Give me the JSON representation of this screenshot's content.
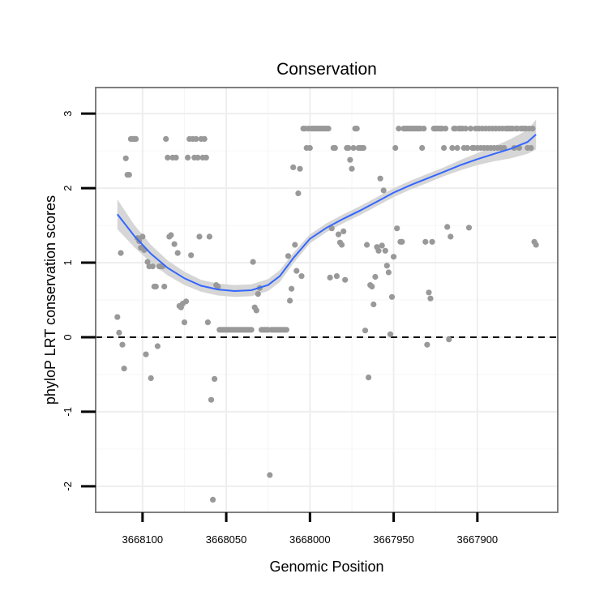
{
  "chart_data": {
    "type": "scatter",
    "title": "Conservation",
    "xlabel": "Genomic Position",
    "ylabel": "phyloP LRT conservation scores",
    "x_reversed": true,
    "xlim": [
      3668128,
      3667852
    ],
    "ylim": [
      -2.35,
      3.35
    ],
    "x_ticks": [
      3668100,
      3668050,
      3668000,
      3667950,
      3667900
    ],
    "x_tick_labels": [
      "3668100",
      "3668050",
      "3668000",
      "3667950",
      "3667900"
    ],
    "y_ticks": [
      -2,
      -1,
      0,
      1,
      2,
      3
    ],
    "y_tick_labels": [
      "-2",
      "-1",
      "0",
      "1",
      "2",
      "3"
    ],
    "grid": true,
    "reference_line": {
      "y": 0,
      "style": "dashed"
    },
    "colors": {
      "points": "#999999",
      "smooth_line": "#3366ff",
      "confidence_band": "#d6d6d6",
      "grid": "#eeeeee",
      "panel_border": "#7f7f7f",
      "reference_line": "#000000"
    },
    "series": [
      {
        "type": "scatter",
        "points": [
          [
            3668115,
            0.27
          ],
          [
            3668114,
            0.06
          ],
          [
            3668113,
            1.13
          ],
          [
            3668112,
            -0.1
          ],
          [
            3668111,
            -0.42
          ],
          [
            3668110,
            2.4
          ],
          [
            3668109,
            2.18
          ],
          [
            3668108,
            2.18
          ],
          [
            3668107,
            2.66
          ],
          [
            3668106,
            2.66
          ],
          [
            3668105,
            2.66
          ],
          [
            3668104,
            2.66
          ],
          [
            3668103,
            1.33
          ],
          [
            3668102,
            1.29
          ],
          [
            3668101,
            1.2
          ],
          [
            3668100,
            1.35
          ],
          [
            3668099,
            1.17
          ],
          [
            3668098,
            -0.23
          ],
          [
            3668097,
            1.01
          ],
          [
            3668096,
            0.95
          ],
          [
            3668095,
            -0.55
          ],
          [
            3668094,
            0.95
          ],
          [
            3668093,
            0.68
          ],
          [
            3668092,
            0.68
          ],
          [
            3668091,
            -0.12
          ],
          [
            3668090,
            0.95
          ],
          [
            3668089,
            0.95
          ],
          [
            3668088,
            0.95
          ],
          [
            3668087,
            0.68
          ],
          [
            3668086,
            2.66
          ],
          [
            3668085,
            2.41
          ],
          [
            3668084,
            1.35
          ],
          [
            3668083,
            1.37
          ],
          [
            3668082,
            2.41
          ],
          [
            3668081,
            1.25
          ],
          [
            3668080,
            2.41
          ],
          [
            3668079,
            1.13
          ],
          [
            3668078,
            0.42
          ],
          [
            3668077,
            0.4
          ],
          [
            3668076,
            0.45
          ],
          [
            3668075,
            0.2
          ],
          [
            3668074,
            0.48
          ],
          [
            3668073,
            2.41
          ],
          [
            3668072,
            2.66
          ],
          [
            3668071,
            1.1
          ],
          [
            3668070,
            2.66
          ],
          [
            3668069,
            2.41
          ],
          [
            3668068,
            2.66
          ],
          [
            3668067,
            2.41
          ],
          [
            3668066,
            1.35
          ],
          [
            3668065,
            2.66
          ],
          [
            3668064,
            2.41
          ],
          [
            3668063,
            2.66
          ],
          [
            3668062,
            2.41
          ],
          [
            3668061,
            0.2
          ],
          [
            3668060,
            1.35
          ],
          [
            3668059,
            -0.84
          ],
          [
            3668058,
            -2.18
          ],
          [
            3668057,
            -0.56
          ],
          [
            3668056,
            0.7
          ],
          [
            3668055,
            0.68
          ],
          [
            3668054,
            0.1
          ],
          [
            3668053,
            0.1
          ],
          [
            3668052,
            0.1
          ],
          [
            3668051,
            0.1
          ],
          [
            3668050,
            0.1
          ],
          [
            3668049,
            0.1
          ],
          [
            3668048,
            0.1
          ],
          [
            3668047,
            0.1
          ],
          [
            3668046,
            0.1
          ],
          [
            3668045,
            0.1
          ],
          [
            3668044,
            0.1
          ],
          [
            3668043,
            0.1
          ],
          [
            3668042,
            0.1
          ],
          [
            3668041,
            0.1
          ],
          [
            3668040,
            0.1
          ],
          [
            3668039,
            0.1
          ],
          [
            3668038,
            0.1
          ],
          [
            3668037,
            0.1
          ],
          [
            3668036,
            0.1
          ],
          [
            3668035,
            0.1
          ],
          [
            3668034,
            1.01
          ],
          [
            3668033,
            0.4
          ],
          [
            3668032,
            0.36
          ],
          [
            3668031,
            0.58
          ],
          [
            3668030,
            0.66
          ],
          [
            3668029,
            0.1
          ],
          [
            3668028,
            0.1
          ],
          [
            3668027,
            0.1
          ],
          [
            3668026,
            0.1
          ],
          [
            3668025,
            0.1
          ],
          [
            3668024,
            -1.85
          ],
          [
            3668023,
            0.1
          ],
          [
            3668022,
            0.1
          ],
          [
            3668021,
            0.1
          ],
          [
            3668020,
            0.1
          ],
          [
            3668019,
            0.1
          ],
          [
            3668018,
            0.1
          ],
          [
            3668017,
            0.1
          ],
          [
            3668016,
            0.1
          ],
          [
            3668015,
            0.1
          ],
          [
            3668014,
            0.1
          ],
          [
            3668013,
            1.09
          ],
          [
            3668012,
            0.49
          ],
          [
            3668011,
            0.65
          ],
          [
            3668010,
            2.28
          ],
          [
            3668009,
            1.24
          ],
          [
            3668008,
            0.89
          ],
          [
            3668007,
            1.93
          ],
          [
            3668006,
            2.26
          ],
          [
            3668005,
            0.82
          ],
          [
            3668004,
            2.8
          ],
          [
            3668003,
            2.8
          ],
          [
            3668002,
            2.54
          ],
          [
            3668001,
            2.8
          ],
          [
            3668000,
            2.54
          ],
          [
            3667999,
            2.8
          ],
          [
            3667998,
            2.8
          ],
          [
            3667997,
            2.8
          ],
          [
            3667996,
            2.8
          ],
          [
            3667995,
            2.8
          ],
          [
            3667994,
            2.8
          ],
          [
            3667993,
            2.8
          ],
          [
            3667992,
            2.8
          ],
          [
            3667991,
            2.8
          ],
          [
            3667990,
            2.8
          ],
          [
            3667989,
            2.8
          ],
          [
            3667988,
            0.8
          ],
          [
            3667987,
            1.46
          ],
          [
            3667986,
            2.54
          ],
          [
            3667985,
            2.54
          ],
          [
            3667984,
            0.82
          ],
          [
            3667983,
            1.38
          ],
          [
            3667982,
            1.27
          ],
          [
            3667981,
            1.24
          ],
          [
            3667980,
            1.42
          ],
          [
            3667979,
            0.77
          ],
          [
            3667978,
            2.54
          ],
          [
            3667977,
            2.54
          ],
          [
            3667976,
            2.38
          ],
          [
            3667975,
            2.26
          ],
          [
            3667974,
            2.54
          ],
          [
            3667973,
            2.8
          ],
          [
            3667972,
            2.8
          ],
          [
            3667971,
            2.54
          ],
          [
            3667970,
            2.54
          ],
          [
            3667969,
            2.54
          ],
          [
            3667968,
            2.54
          ],
          [
            3667967,
            0.09
          ],
          [
            3667966,
            1.24
          ],
          [
            3667965,
            -0.54
          ],
          [
            3667964,
            0.7
          ],
          [
            3667963,
            0.68
          ],
          [
            3667962,
            0.44
          ],
          [
            3667961,
            0.81
          ],
          [
            3667960,
            1.21
          ],
          [
            3667959,
            1.16
          ],
          [
            3667958,
            2.13
          ],
          [
            3667957,
            1.23
          ],
          [
            3667956,
            1.97
          ],
          [
            3667955,
            1.16
          ],
          [
            3667954,
            0.96
          ],
          [
            3667953,
            0.87
          ],
          [
            3667952,
            0.04
          ],
          [
            3667951,
            0.54
          ],
          [
            3667950,
            1.08
          ],
          [
            3667949,
            2.54
          ],
          [
            3667948,
            1.46
          ],
          [
            3667947,
            2.8
          ],
          [
            3667946,
            1.28
          ],
          [
            3667945,
            1.28
          ],
          [
            3667944,
            2.8
          ],
          [
            3667943,
            2.8
          ],
          [
            3667942,
            2.8
          ],
          [
            3667941,
            2.8
          ],
          [
            3667940,
            2.8
          ],
          [
            3667939,
            2.8
          ],
          [
            3667938,
            2.8
          ],
          [
            3667937,
            2.8
          ],
          [
            3667936,
            2.8
          ],
          [
            3667935,
            2.8
          ],
          [
            3667934,
            2.8
          ],
          [
            3667933,
            2.54
          ],
          [
            3667932,
            2.8
          ],
          [
            3667931,
            1.28
          ],
          [
            3667930,
            -0.1
          ],
          [
            3667929,
            0.6
          ],
          [
            3667928,
            0.52
          ],
          [
            3667927,
            1.28
          ],
          [
            3667926,
            2.8
          ],
          [
            3667925,
            2.8
          ],
          [
            3667924,
            2.8
          ],
          [
            3667923,
            2.8
          ],
          [
            3667922,
            2.8
          ],
          [
            3667921,
            2.8
          ],
          [
            3667920,
            2.54
          ],
          [
            3667919,
            2.8
          ],
          [
            3667918,
            1.48
          ],
          [
            3667917,
            -0.03
          ],
          [
            3667916,
            1.35
          ],
          [
            3667915,
            2.54
          ],
          [
            3667914,
            2.8
          ],
          [
            3667913,
            2.8
          ],
          [
            3667912,
            2.54
          ],
          [
            3667911,
            2.8
          ],
          [
            3667910,
            2.8
          ],
          [
            3667909,
            2.8
          ],
          [
            3667908,
            2.54
          ],
          [
            3667907,
            2.8
          ],
          [
            3667906,
            2.54
          ],
          [
            3667905,
            1.47
          ],
          [
            3667904,
            2.8
          ],
          [
            3667903,
            2.54
          ],
          [
            3667902,
            2.54
          ],
          [
            3667901,
            2.8
          ],
          [
            3667900,
            2.54
          ],
          [
            3667899,
            2.8
          ],
          [
            3667898,
            2.54
          ],
          [
            3667897,
            2.8
          ],
          [
            3667896,
            2.54
          ],
          [
            3667895,
            2.8
          ],
          [
            3667894,
            2.54
          ],
          [
            3667893,
            2.8
          ],
          [
            3667892,
            2.54
          ],
          [
            3667891,
            2.8
          ],
          [
            3667890,
            2.54
          ],
          [
            3667889,
            2.8
          ],
          [
            3667888,
            2.54
          ],
          [
            3667887,
            2.8
          ],
          [
            3667886,
            2.54
          ],
          [
            3667885,
            2.8
          ],
          [
            3667884,
            2.54
          ],
          [
            3667883,
            2.8
          ],
          [
            3667882,
            2.8
          ],
          [
            3667881,
            2.8
          ],
          [
            3667880,
            2.8
          ],
          [
            3667879,
            2.8
          ],
          [
            3667878,
            2.54
          ],
          [
            3667877,
            2.8
          ],
          [
            3667876,
            2.8
          ],
          [
            3667875,
            2.54
          ],
          [
            3667874,
            2.8
          ],
          [
            3667873,
            2.8
          ],
          [
            3667872,
            2.8
          ],
          [
            3667871,
            2.8
          ],
          [
            3667870,
            2.54
          ],
          [
            3667869,
            2.8
          ],
          [
            3667868,
            2.54
          ],
          [
            3667867,
            2.8
          ],
          [
            3667866,
            1.28
          ],
          [
            3667865,
            1.24
          ]
        ]
      },
      {
        "type": "smooth",
        "points": [
          [
            3668115,
            1.65
          ],
          [
            3668105,
            1.36
          ],
          [
            3668095,
            1.12
          ],
          [
            3668085,
            0.93
          ],
          [
            3668075,
            0.79
          ],
          [
            3668065,
            0.69
          ],
          [
            3668055,
            0.64
          ],
          [
            3668045,
            0.62
          ],
          [
            3668035,
            0.63
          ],
          [
            3668025,
            0.7
          ],
          [
            3668018,
            0.82
          ],
          [
            3668010,
            1.06
          ],
          [
            3668000,
            1.32
          ],
          [
            3667990,
            1.47
          ],
          [
            3667980,
            1.59
          ],
          [
            3667970,
            1.7
          ],
          [
            3667960,
            1.82
          ],
          [
            3667950,
            1.94
          ],
          [
            3667940,
            2.04
          ],
          [
            3667930,
            2.13
          ],
          [
            3667920,
            2.22
          ],
          [
            3667910,
            2.31
          ],
          [
            3667900,
            2.39
          ],
          [
            3667890,
            2.46
          ],
          [
            3667880,
            2.53
          ],
          [
            3667870,
            2.62
          ],
          [
            3667865,
            2.72
          ]
        ],
        "band_halfwidth": [
          0.2,
          0.15,
          0.12,
          0.1,
          0.09,
          0.08,
          0.08,
          0.08,
          0.08,
          0.08,
          0.08,
          0.07,
          0.06,
          0.06,
          0.06,
          0.06,
          0.06,
          0.06,
          0.06,
          0.06,
          0.06,
          0.07,
          0.08,
          0.1,
          0.13,
          0.16,
          0.2
        ]
      }
    ]
  }
}
